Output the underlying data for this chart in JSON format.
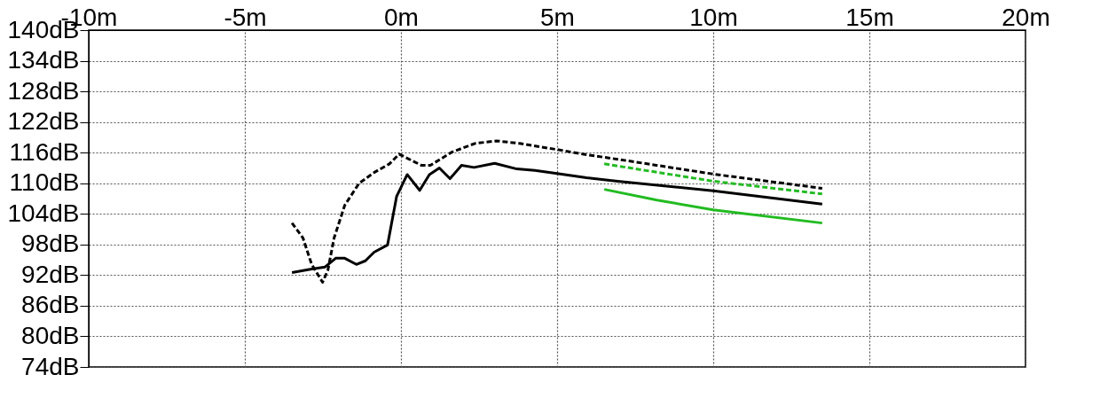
{
  "chart_data": {
    "type": "line",
    "xlim": [
      -10,
      20
    ],
    "ylim": [
      74,
      140
    ],
    "xticks": [
      {
        "value": -10,
        "label": "-10m"
      },
      {
        "value": -5,
        "label": "-5m"
      },
      {
        "value": 0,
        "label": "0m"
      },
      {
        "value": 5,
        "label": "5m"
      },
      {
        "value": 10,
        "label": "10m"
      },
      {
        "value": 15,
        "label": "15m"
      },
      {
        "value": 20,
        "label": "20m"
      }
    ],
    "yticks": [
      {
        "value": 74,
        "label": "74dB"
      },
      {
        "value": 80,
        "label": "80dB"
      },
      {
        "value": 86,
        "label": "86dB"
      },
      {
        "value": 92,
        "label": "92dB"
      },
      {
        "value": 98,
        "label": "98dB"
      },
      {
        "value": 104,
        "label": "104dB"
      },
      {
        "value": 110,
        "label": "110dB"
      },
      {
        "value": 116,
        "label": "116dB"
      },
      {
        "value": 122,
        "label": "122dB"
      },
      {
        "value": 128,
        "label": "128dB"
      },
      {
        "value": 134,
        "label": "134dB"
      },
      {
        "value": 140,
        "label": "140dB"
      }
    ],
    "grid": true,
    "series": [
      {
        "color": "#000000",
        "line_style": "solid",
        "x": [
          -3.49,
          -2.86,
          -2.43,
          -2.09,
          -1.8,
          -1.43,
          -1.14,
          -0.86,
          -0.43,
          -0.14,
          0.2,
          0.6,
          0.91,
          1.23,
          1.57,
          1.94,
          2.34,
          3.0,
          3.71,
          4.29,
          5.0,
          5.94,
          6.94,
          10,
          13.49
        ],
        "values": [
          92.5,
          93.2,
          93.6,
          95.3,
          95.3,
          94.1,
          94.8,
          96.5,
          97.9,
          107.4,
          111.7,
          108.6,
          111.7,
          113,
          110.9,
          113.5,
          113.1,
          113.9,
          112.8,
          112.5,
          111.9,
          111.1,
          110.4,
          108.5,
          105.9
        ]
      },
      {
        "color": "#000000",
        "line_style": "dashed",
        "x": [
          -3.49,
          -3.14,
          -2.86,
          -2.51,
          -2.34,
          -2.14,
          -1.8,
          -1.34,
          -0.86,
          -0.37,
          -0.06,
          0.66,
          0.94,
          1.63,
          2.37,
          3.06,
          3.8,
          5.0,
          5.94,
          6.94,
          10,
          13.49
        ],
        "values": [
          102.2,
          99.3,
          94.1,
          90.6,
          93,
          99.3,
          105.7,
          110,
          112.1,
          113.8,
          115.7,
          113.5,
          113.5,
          116.1,
          117.8,
          118.3,
          117.8,
          116.6,
          115.6,
          114.7,
          111.8,
          109.0
        ]
      },
      {
        "color": "#22bb22",
        "line_style": "dashed",
        "x": [
          6.51,
          10,
          13.49
        ],
        "values": [
          113.8,
          110.4,
          107.9
        ]
      },
      {
        "color": "#22bb22",
        "line_style": "solid",
        "x": [
          6.51,
          8.2,
          10,
          13.49
        ],
        "values": [
          108.8,
          106.7,
          104.8,
          102.2
        ]
      }
    ]
  }
}
